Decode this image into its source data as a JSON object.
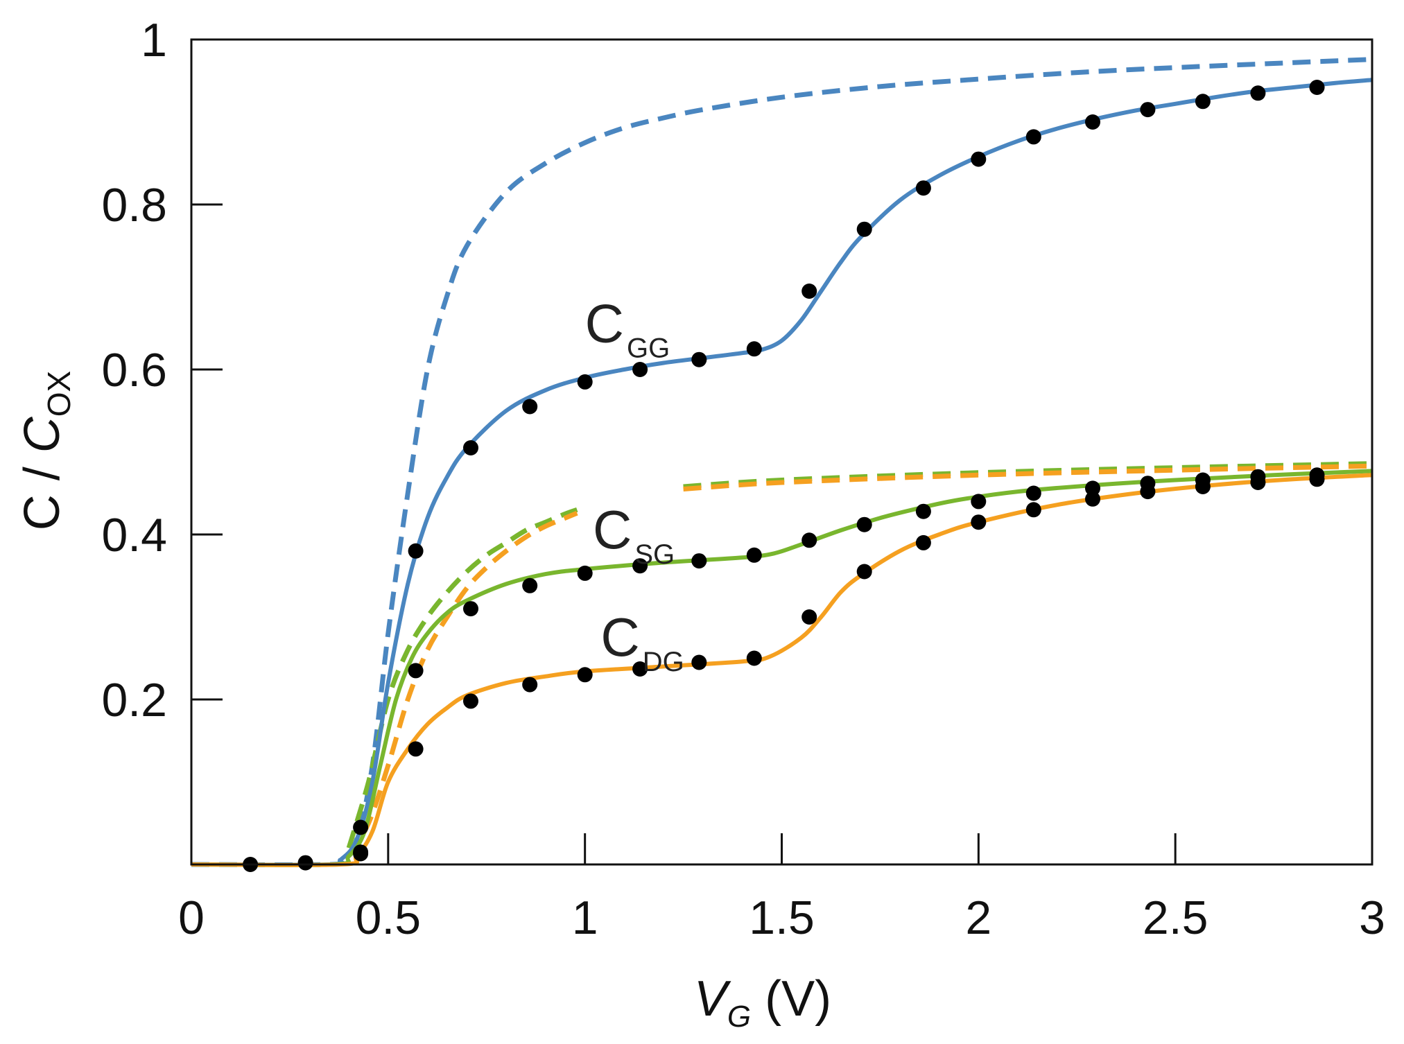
{
  "chart_data": {
    "type": "line",
    "title": "",
    "xlabel": {
      "main": "V",
      "sub": "G",
      "unit": "(V)"
    },
    "ylabel": {
      "prefix": "C / ",
      "main": "C",
      "sub": "OX"
    },
    "xlim": [
      0,
      3
    ],
    "ylim": [
      0,
      1
    ],
    "grid": false,
    "legend": "none",
    "x_ticks": [
      0,
      0.5,
      1,
      1.5,
      2,
      2.5,
      3
    ],
    "x_tick_labels": [
      "0",
      "0.5",
      "1",
      "1.5",
      "2",
      "2.5",
      "3"
    ],
    "y_ticks": [
      0.2,
      0.4,
      0.6,
      0.8,
      1
    ],
    "y_tick_labels": [
      "0.2",
      "0.4",
      "0.6",
      "0.8",
      "1"
    ],
    "colors": {
      "gg": "#4a86c0",
      "sg": "#79b62e",
      "dg": "#f5a020",
      "markers": "#000000",
      "axes": "#111111"
    },
    "annotations": [
      {
        "main": "C",
        "sub": "GG",
        "x": 1.0,
        "y": 0.655
      },
      {
        "main": "C",
        "sub": "SG",
        "x": 1.02,
        "y": 0.405
      },
      {
        "main": "C",
        "sub": "DG",
        "x": 1.04,
        "y": 0.275
      }
    ],
    "series": [
      {
        "name": "CGG model (solid)",
        "color": "#4a86c0",
        "dash": false,
        "x": [
          0,
          0.35,
          0.38,
          0.42,
          0.46,
          0.5,
          0.55,
          0.6,
          0.65,
          0.7,
          0.8,
          0.9,
          1.0,
          1.1,
          1.2,
          1.3,
          1.4,
          1.45,
          1.5,
          1.55,
          1.6,
          1.65,
          1.7,
          1.8,
          1.9,
          2.0,
          2.1,
          2.2,
          2.3,
          2.4,
          2.5,
          2.6,
          2.7,
          2.8,
          2.9,
          3.0
        ],
        "y": [
          0,
          0,
          0.006,
          0.03,
          0.1,
          0.22,
          0.34,
          0.42,
          0.47,
          0.505,
          0.55,
          0.575,
          0.59,
          0.6,
          0.608,
          0.614,
          0.62,
          0.624,
          0.635,
          0.66,
          0.695,
          0.73,
          0.76,
          0.805,
          0.835,
          0.858,
          0.877,
          0.892,
          0.904,
          0.914,
          0.922,
          0.93,
          0.937,
          0.942,
          0.947,
          0.951
        ]
      },
      {
        "name": "CGG (dashed)",
        "color": "#4a86c0",
        "dash": true,
        "x": [
          0,
          0.35,
          0.38,
          0.42,
          0.46,
          0.5,
          0.55,
          0.6,
          0.65,
          0.7,
          0.8,
          0.9,
          1.0,
          1.1,
          1.2,
          1.3,
          1.5,
          1.75,
          2.0,
          2.25,
          2.5,
          2.75,
          3.0
        ],
        "y": [
          0,
          0,
          0.006,
          0.03,
          0.12,
          0.28,
          0.45,
          0.6,
          0.69,
          0.75,
          0.815,
          0.85,
          0.875,
          0.893,
          0.905,
          0.915,
          0.93,
          0.943,
          0.952,
          0.96,
          0.966,
          0.971,
          0.976
        ]
      },
      {
        "name": "CSG model (solid)",
        "color": "#79b62e",
        "dash": false,
        "x": [
          0,
          0.36,
          0.4,
          0.44,
          0.48,
          0.52,
          0.56,
          0.6,
          0.65,
          0.7,
          0.8,
          0.9,
          1.0,
          1.2,
          1.4,
          1.48,
          1.55,
          1.65,
          1.75,
          1.85,
          1.95,
          2.1,
          2.3,
          2.5,
          2.75,
          3.0
        ],
        "y": [
          0,
          0,
          0.01,
          0.04,
          0.12,
          0.2,
          0.25,
          0.28,
          0.305,
          0.32,
          0.34,
          0.352,
          0.358,
          0.366,
          0.372,
          0.377,
          0.388,
          0.405,
          0.42,
          0.432,
          0.442,
          0.452,
          0.46,
          0.466,
          0.472,
          0.477
        ]
      },
      {
        "name": "CDG model (solid)",
        "color": "#f5a020",
        "dash": false,
        "x": [
          0,
          0.38,
          0.42,
          0.46,
          0.5,
          0.55,
          0.6,
          0.65,
          0.7,
          0.8,
          0.9,
          1.0,
          1.2,
          1.4,
          1.47,
          1.55,
          1.6,
          1.65,
          1.7,
          1.8,
          1.9,
          2.0,
          2.2,
          2.4,
          2.6,
          2.8,
          3.0
        ],
        "y": [
          0,
          0,
          0.01,
          0.04,
          0.1,
          0.14,
          0.17,
          0.19,
          0.205,
          0.22,
          0.228,
          0.234,
          0.24,
          0.246,
          0.252,
          0.275,
          0.3,
          0.33,
          0.35,
          0.38,
          0.4,
          0.415,
          0.436,
          0.45,
          0.46,
          0.467,
          0.472
        ]
      },
      {
        "name": "CSG (dashed)",
        "color": "#79b62e",
        "dash": true,
        "segments": [
          {
            "x": [
              0.4,
              0.45,
              0.5,
              0.55,
              0.6,
              0.65,
              0.7,
              0.75,
              0.8,
              0.85,
              0.9,
              0.95,
              0.98
            ],
            "y": [
              0.02,
              0.1,
              0.2,
              0.26,
              0.3,
              0.33,
              0.355,
              0.375,
              0.39,
              0.405,
              0.415,
              0.425,
              0.43
            ]
          },
          {
            "x": [
              1.25,
              1.5,
              2.0,
              2.5,
              3.0
            ],
            "y": [
              0.458,
              0.466,
              0.475,
              0.481,
              0.486
            ]
          }
        ]
      },
      {
        "name": "CDG (dashed)",
        "color": "#f5a020",
        "dash": true,
        "segments": [
          {
            "x": [
              0.4,
              0.45,
              0.5,
              0.55,
              0.6,
              0.65,
              0.7,
              0.75,
              0.8,
              0.85,
              0.9,
              0.95,
              0.98
            ],
            "y": [
              0.01,
              0.05,
              0.12,
              0.2,
              0.26,
              0.3,
              0.335,
              0.36,
              0.38,
              0.397,
              0.41,
              0.42,
              0.426
            ]
          },
          {
            "x": [
              1.25,
              1.5,
              2.0,
              2.5,
              3.0
            ],
            "y": [
              0.455,
              0.463,
              0.472,
              0.478,
              0.483
            ]
          }
        ]
      },
      {
        "name": "CGG measured",
        "type": "scatter",
        "color": "#000000",
        "x": [
          0.15,
          0.29,
          0.43,
          0.57,
          0.71,
          0.86,
          1.0,
          1.14,
          1.29,
          1.43,
          1.57,
          1.71,
          1.86,
          2.0,
          2.14,
          2.29,
          2.43,
          2.57,
          2.71,
          2.86
        ],
        "y": [
          0.0,
          0.002,
          0.045,
          0.38,
          0.505,
          0.555,
          0.585,
          0.6,
          0.612,
          0.625,
          0.695,
          0.77,
          0.82,
          0.855,
          0.882,
          0.9,
          0.915,
          0.925,
          0.935,
          0.942
        ]
      },
      {
        "name": "CSG measured",
        "type": "scatter",
        "color": "#000000",
        "x": [
          0.43,
          0.57,
          0.71,
          0.86,
          1.0,
          1.14,
          1.29,
          1.43,
          1.57,
          1.71,
          1.86,
          2.0,
          2.14,
          2.29,
          2.43,
          2.57,
          2.71,
          2.86
        ],
        "y": [
          0.015,
          0.235,
          0.31,
          0.338,
          0.353,
          0.362,
          0.368,
          0.375,
          0.393,
          0.412,
          0.428,
          0.44,
          0.45,
          0.456,
          0.462,
          0.466,
          0.47,
          0.472
        ]
      },
      {
        "name": "CDG measured",
        "type": "scatter",
        "color": "#000000",
        "x": [
          0.43,
          0.57,
          0.71,
          0.86,
          1.0,
          1.14,
          1.29,
          1.43,
          1.57,
          1.71,
          1.86,
          2.0,
          2.14,
          2.29,
          2.43,
          2.57,
          2.71,
          2.86
        ],
        "y": [
          0.013,
          0.14,
          0.198,
          0.218,
          0.23,
          0.237,
          0.245,
          0.25,
          0.3,
          0.355,
          0.39,
          0.415,
          0.43,
          0.443,
          0.452,
          0.458,
          0.463,
          0.467
        ]
      }
    ]
  }
}
